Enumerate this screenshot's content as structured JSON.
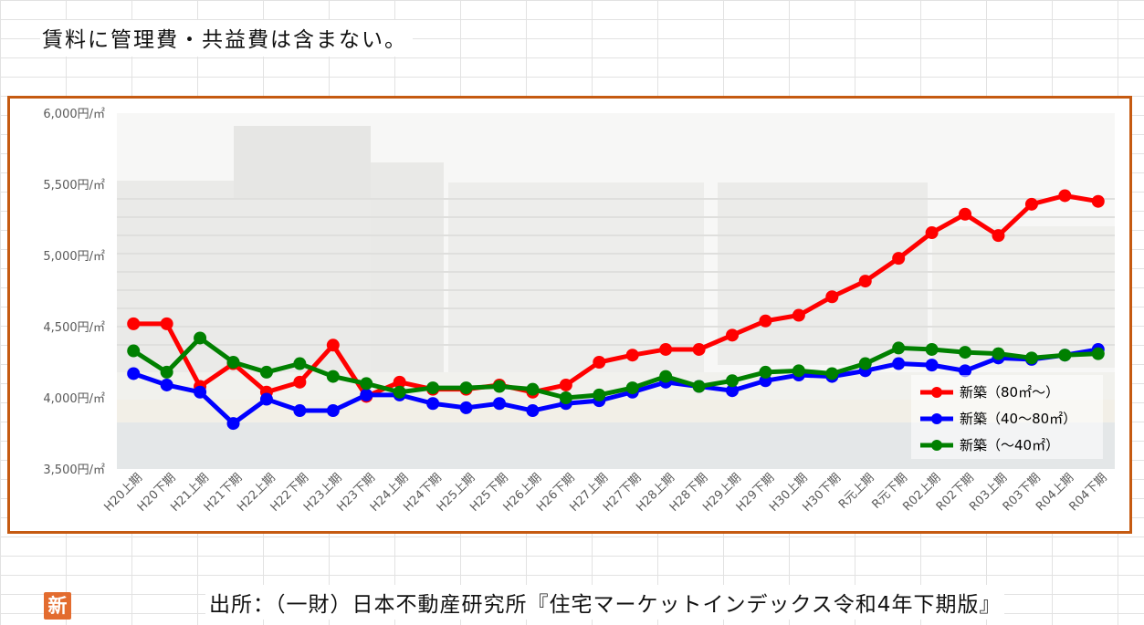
{
  "note": "賃料に管理費・共益費は含まない。",
  "source": "出所：（一財）日本不動産研究所『住宅マーケットインデックス令和4年下期版』",
  "logo_text": "新",
  "chart_data": {
    "type": "line",
    "title": "",
    "xlabel": "",
    "ylabel": "",
    "ylim": [
      3500,
      6000
    ],
    "yticks": [
      3500,
      4000,
      4500,
      5000,
      5500,
      6000
    ],
    "ytick_labels": [
      "3,500円/㎡",
      "4,000円/㎡",
      "4,500円/㎡",
      "5,000円/㎡",
      "5,500円/㎡",
      "6,000円/㎡"
    ],
    "grid": false,
    "legend_position": "bottom-right",
    "categories": [
      "H20上期",
      "H20下期",
      "H21上期",
      "H21下期",
      "H22上期",
      "H22下期",
      "H23上期",
      "H23下期",
      "H24上期",
      "H24下期",
      "H25上期",
      "H25下期",
      "H26上期",
      "H26下期",
      "H27上期",
      "H27下期",
      "H28上期",
      "H28下期",
      "H29上期",
      "H29下期",
      "H30上期",
      "H30下期",
      "R元上期",
      "R元下期",
      "R02上期",
      "R02下期",
      "R03上期",
      "R03下期",
      "R04上期",
      "R04下期"
    ],
    "series": [
      {
        "name": "新築（80㎡～）",
        "color": "#ff0000",
        "values": [
          4520,
          4520,
          4080,
          4240,
          4040,
          4110,
          4370,
          4010,
          4110,
          4060,
          4060,
          4090,
          4040,
          4090,
          4250,
          4300,
          4340,
          4340,
          4440,
          4540,
          4580,
          4710,
          4820,
          4980,
          5160,
          5290,
          5140,
          5360,
          5420,
          5380
        ]
      },
      {
        "name": "新築（40～80㎡）",
        "color": "#0000ff",
        "values": [
          4170,
          4090,
          4040,
          3820,
          3990,
          3910,
          3910,
          4020,
          4020,
          3960,
          3930,
          3960,
          3910,
          3960,
          3980,
          4040,
          4110,
          4080,
          4050,
          4120,
          4160,
          4150,
          4190,
          4240,
          4230,
          4190,
          4280,
          4270,
          4300,
          4340
        ]
      },
      {
        "name": "新築（～40㎡）",
        "color": "#008000",
        "values": [
          4330,
          4180,
          4420,
          4250,
          4180,
          4240,
          4150,
          4100,
          4040,
          4070,
          4070,
          4080,
          4060,
          4000,
          4020,
          4070,
          4150,
          4080,
          4120,
          4180,
          4190,
          4170,
          4240,
          4350,
          4340,
          4320,
          4310,
          4280,
          4300,
          4310
        ]
      }
    ]
  }
}
